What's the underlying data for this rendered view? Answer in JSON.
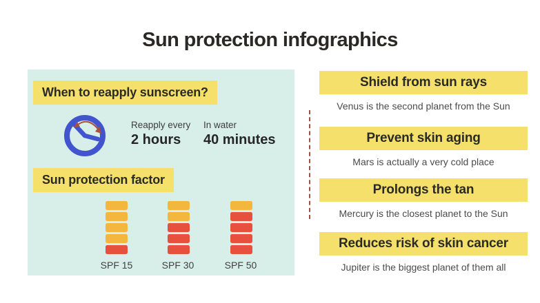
{
  "slide": {
    "title": "Sun protection infographics"
  },
  "left_panel": {
    "heading": "When to reapply sunscreen?",
    "reapply_label": "Reapply every",
    "reapply_value": "2 hours",
    "water_label": "In water",
    "water_value": "40 minutes",
    "spf_heading": "Sun protection factor",
    "spf_stacks": [
      {
        "label": "SPF 15",
        "segments": [
          "yellow",
          "yellow",
          "yellow",
          "yellow",
          "red"
        ]
      },
      {
        "label": "SPF 30",
        "segments": [
          "yellow",
          "yellow",
          "red",
          "red",
          "red"
        ]
      },
      {
        "label": "SPF 50",
        "segments": [
          "yellow",
          "red",
          "red",
          "red",
          "red"
        ]
      }
    ]
  },
  "right_panel": {
    "items": [
      {
        "title": "Shield from sun rays",
        "description": "Venus is the second planet from the Sun"
      },
      {
        "title": "Prevent skin aging",
        "description": "Mars is actually a very cold place"
      },
      {
        "title": "Prolongs the tan",
        "description": "Mercury is the closest planet to the Sun"
      },
      {
        "title": "Reduces risk of skin cancer",
        "description": "Jupiter is the biggest planet of them all"
      }
    ]
  },
  "icons": {
    "clock": "clock-icon",
    "arrow": "clockwise-arrow-icon"
  },
  "colors": {
    "panel_mint": "#D8EFE9",
    "highlight_yellow": "#F4E06A",
    "bar_yellow": "#F3B73D",
    "bar_red": "#E6503C",
    "clock_blue": "#4355CE",
    "arrow_red": "#AD4F3D",
    "divider_red": "#9C5147",
    "heading_text": "#2B2B26",
    "body_text": "#4B4B4B",
    "title_text": "#2B2926"
  }
}
